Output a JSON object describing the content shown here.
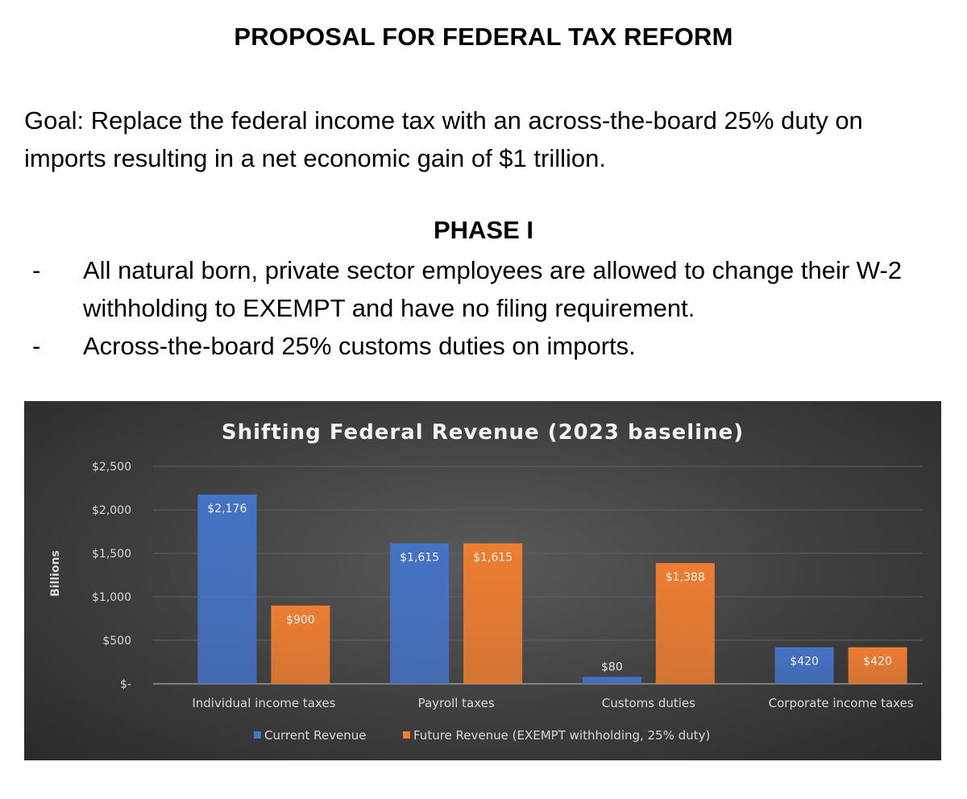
{
  "document": {
    "title": "PROPOSAL FOR FEDERAL TAX REFORM",
    "goal": "Goal: Replace the federal income tax with an across-the-board 25% duty on imports resulting in a net economic gain of $1 trillion.",
    "phase_heading": "PHASE I",
    "bullets": [
      {
        "marker": "-",
        "text": "All natural born, private sector employees are allowed to change their W-2 withholding to EXEMPT and have no filing requirement."
      },
      {
        "marker": "-",
        "text": "Across-the-board 25% customs duties on imports."
      }
    ]
  },
  "colors": {
    "current": "#4472c4",
    "future": "#ed7d31",
    "gridline": "#5f5f5f",
    "axis": "#bfbfbf"
  },
  "chart_data": {
    "type": "bar",
    "title": "Shifting Federal Revenue (2023 baseline)",
    "xlabel": "",
    "ylabel": "Billions",
    "ylim": [
      0,
      2500
    ],
    "yticks": [
      0,
      500,
      1000,
      1500,
      2000,
      2500
    ],
    "ytick_labels": [
      "$-",
      "$500",
      "$1,000",
      "$1,500",
      "$2,000",
      "$2,500"
    ],
    "grid": true,
    "legend_position": "bottom",
    "categories": [
      "Individual income taxes",
      "Payroll taxes",
      "Customs duties",
      "Corporate income taxes"
    ],
    "series": [
      {
        "name": "Current Revenue",
        "values": [
          2176,
          1615,
          80,
          420
        ],
        "labels": [
          "$2,176",
          "$1,615",
          "$80",
          "$420"
        ]
      },
      {
        "name": "Future Revenue  (EXEMPT withholding, 25% duty)",
        "values": [
          900,
          1615,
          1388,
          420
        ],
        "labels": [
          "$900",
          "$1,615",
          "$1,388",
          "$420"
        ]
      }
    ]
  }
}
